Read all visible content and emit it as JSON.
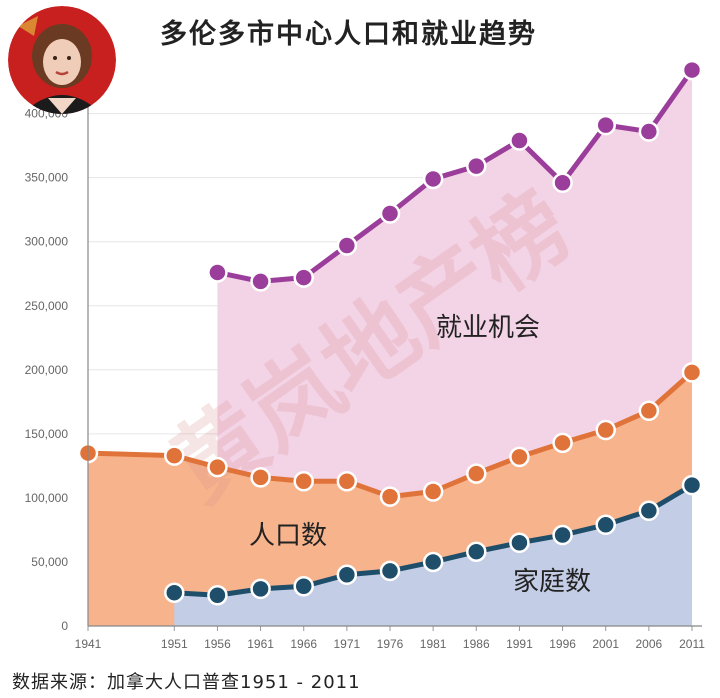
{
  "page": {
    "title": "多伦多市中心人口和就业趋势",
    "source": "数据来源：加拿大人口普查1951 - 2011",
    "watermark": "黄岚地产榜"
  },
  "chart_data": {
    "type": "area",
    "title": "多伦多市中心人口和就业趋势",
    "xlabel": "",
    "ylabel": "",
    "ylim": [
      0,
      420000
    ],
    "x_ticks": [
      "1941",
      "1951",
      "1956",
      "1961",
      "1966",
      "1971",
      "1976",
      "1981",
      "1986",
      "1991",
      "1996",
      "2001",
      "2006",
      "2011"
    ],
    "y_ticks": [
      "0",
      "50,000",
      "100,000",
      "150,000",
      "200,000",
      "250,000",
      "300,000",
      "350,000",
      "400,000"
    ],
    "grid": true,
    "series": [
      {
        "name": "就业机会",
        "color": "#9b3e9b",
        "fill": "#f3d3e6",
        "x": [
          1956,
          1961,
          1966,
          1971,
          1976,
          1981,
          1986,
          1991,
          1996,
          2001,
          2006,
          2011
        ],
        "values": [
          276000,
          269000,
          272000,
          297000,
          322000,
          349000,
          359000,
          379000,
          346000,
          391000,
          386000,
          434000
        ]
      },
      {
        "name": "人口数",
        "color": "#e0733a",
        "fill": "#f7b48c",
        "x": [
          1941,
          1951,
          1956,
          1961,
          1966,
          1971,
          1976,
          1981,
          1986,
          1991,
          1996,
          2001,
          2006,
          2011
        ],
        "values": [
          135000,
          133000,
          124000,
          116000,
          113000,
          113000,
          101000,
          105000,
          119000,
          132000,
          143000,
          153000,
          168000,
          198000
        ]
      },
      {
        "name": "家庭数",
        "color": "#1f4e6b",
        "fill": "#c4cde6",
        "x": [
          1951,
          1956,
          1961,
          1966,
          1971,
          1976,
          1981,
          1986,
          1991,
          1996,
          2001,
          2006,
          2011
        ],
        "values": [
          26000,
          24000,
          29000,
          31000,
          40000,
          43000,
          50000,
          58000,
          65000,
          71000,
          79000,
          90000,
          110000
        ]
      }
    ]
  }
}
